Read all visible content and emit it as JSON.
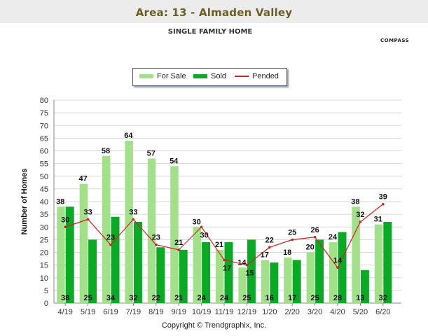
{
  "header": {
    "title": "Area: 13 - Almaden Valley",
    "subtitle": "SINGLE FAMILY HOME",
    "brand": "COMPASS"
  },
  "footer": {
    "copyright": "Copyright © Trendgraphix, Inc."
  },
  "chart_data": {
    "type": "bar",
    "ylabel": "Number of Homes",
    "xlabel": "",
    "ylim": [
      0,
      80
    ],
    "yticks": [
      0,
      5,
      10,
      15,
      20,
      25,
      30,
      35,
      40,
      45,
      50,
      55,
      60,
      65,
      70,
      75,
      80
    ],
    "grid": true,
    "legend_position": "top-center",
    "categories": [
      "4/19",
      "5/19",
      "6/19",
      "7/19",
      "8/19",
      "9/19",
      "10/19",
      "11/19",
      "12/19",
      "1/20",
      "2/20",
      "3/20",
      "4/20",
      "5/20",
      "6/20"
    ],
    "series": [
      {
        "name": "For Sale",
        "type": "bar",
        "color": "#a3e08a",
        "values": [
          38,
          47,
          58,
          64,
          57,
          54,
          30,
          21,
          14,
          17,
          18,
          20,
          24,
          38,
          31
        ]
      },
      {
        "name": "Sold",
        "type": "bar",
        "color": "#0aaa27",
        "values": [
          38,
          25,
          34,
          32,
          22,
          21,
          24,
          24,
          25,
          16,
          17,
          25,
          28,
          13,
          32
        ]
      },
      {
        "name": "Pended",
        "type": "line",
        "color": "#d42020",
        "values": [
          30,
          33,
          23,
          33,
          23,
          21,
          30,
          17,
          15,
          22,
          25,
          26,
          14,
          32,
          39
        ]
      }
    ]
  }
}
